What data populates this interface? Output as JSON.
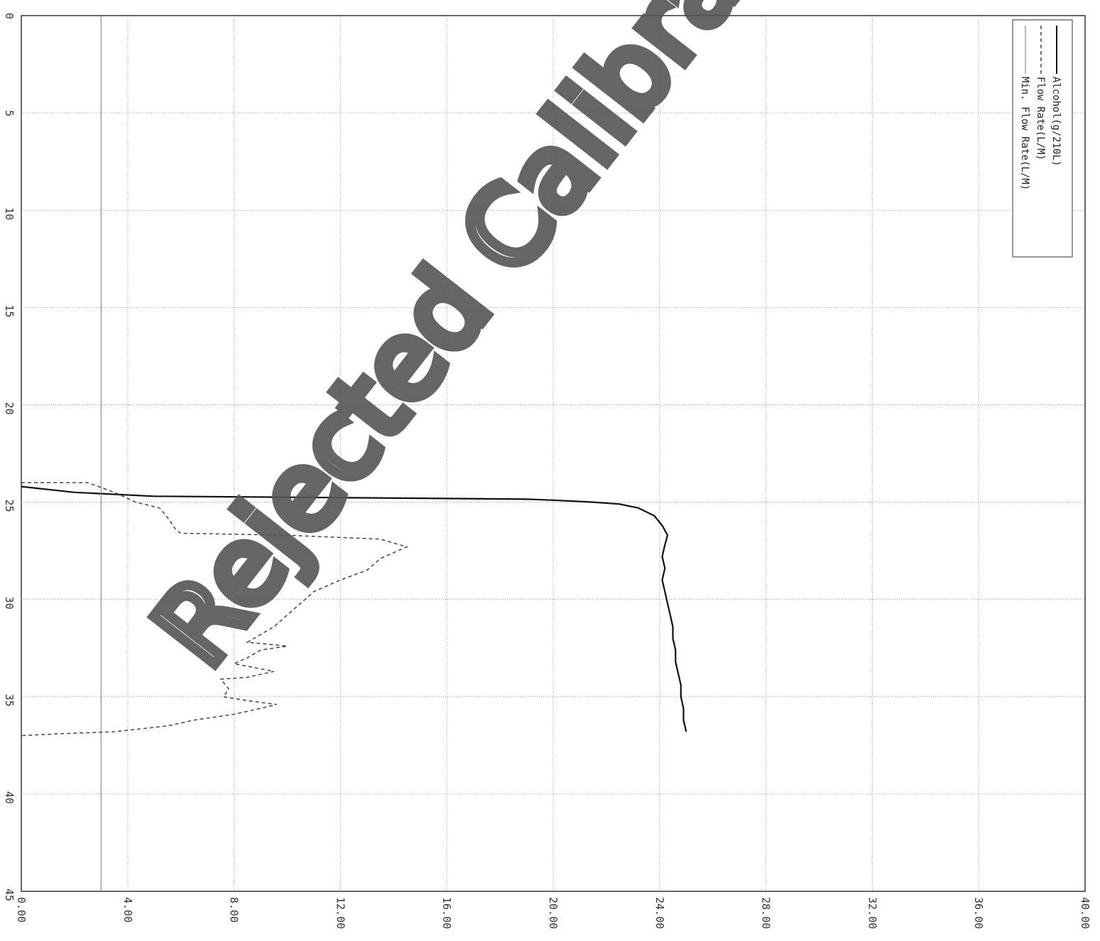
{
  "chart_data": {
    "type": "line",
    "title": "",
    "xlabel": "",
    "ylabel": "",
    "x_axis_position": "bottom",
    "y_axis_position": "left",
    "x_ticks": [
      "0.00",
      "4.00",
      "8.00",
      "12.00",
      "16.00",
      "20.00",
      "24.00",
      "28.00",
      "32.00",
      "36.00",
      "40.00"
    ],
    "y_ticks": [
      "0",
      "5",
      "10",
      "15",
      "20",
      "25",
      "30",
      "35",
      "40",
      "45"
    ],
    "xlim": [
      0,
      40
    ],
    "ylim": [
      0,
      45
    ],
    "y_inverted": true,
    "grid": true,
    "legend_position": "top-right",
    "series": [
      {
        "name": "Alcohol(g/210L)",
        "style": "solid",
        "color": "#111111",
        "points": [
          [
            0,
            24.2
          ],
          [
            2,
            24.5
          ],
          [
            5,
            24.7
          ],
          [
            10,
            24.75
          ],
          [
            15,
            24.8
          ],
          [
            19,
            24.85
          ],
          [
            20,
            24.9
          ],
          [
            21.5,
            25.0
          ],
          [
            22.5,
            25.1
          ],
          [
            23.2,
            25.3
          ],
          [
            23.8,
            25.7
          ],
          [
            24.1,
            26.2
          ],
          [
            24.3,
            26.7
          ],
          [
            24.2,
            27.2
          ],
          [
            24.1,
            27.8
          ],
          [
            24.2,
            28.4
          ],
          [
            24.1,
            29.0
          ],
          [
            24.2,
            29.6
          ],
          [
            24.3,
            30.2
          ],
          [
            24.4,
            30.8
          ],
          [
            24.5,
            31.4
          ],
          [
            24.5,
            32.0
          ],
          [
            24.6,
            32.6
          ],
          [
            24.6,
            33.2
          ],
          [
            24.7,
            33.8
          ],
          [
            24.8,
            34.4
          ],
          [
            24.8,
            35.0
          ],
          [
            24.9,
            35.6
          ],
          [
            24.9,
            36.2
          ],
          [
            25.0,
            36.8
          ]
        ]
      },
      {
        "name": "Flow Rate(L/M)",
        "style": "dashed",
        "color": "#444444",
        "points": [
          [
            0,
            24.0
          ],
          [
            2.5,
            24.0
          ],
          [
            3.5,
            24.5
          ],
          [
            4.3,
            25.0
          ],
          [
            5.2,
            25.3
          ],
          [
            5.5,
            25.8
          ],
          [
            5.8,
            26.4
          ],
          [
            6.0,
            26.6
          ],
          [
            10,
            26.7
          ],
          [
            13.5,
            26.9
          ],
          [
            14.5,
            27.3
          ],
          [
            13.5,
            27.9
          ],
          [
            13.0,
            28.5
          ],
          [
            12.0,
            29.0
          ],
          [
            11.0,
            29.6
          ],
          [
            10.5,
            30.2
          ],
          [
            10.0,
            30.8
          ],
          [
            9.5,
            31.4
          ],
          [
            9.0,
            31.8
          ],
          [
            8.5,
            32.2
          ],
          [
            10.0,
            32.4
          ],
          [
            9.0,
            32.6
          ],
          [
            8.5,
            33.0
          ],
          [
            8.0,
            33.3
          ],
          [
            9.5,
            33.7
          ],
          [
            8.5,
            34.0
          ],
          [
            7.5,
            34.1
          ],
          [
            7.8,
            34.6
          ],
          [
            7.6,
            35.0
          ],
          [
            8.5,
            35.2
          ],
          [
            9.6,
            35.4
          ],
          [
            9.0,
            35.6
          ],
          [
            8.0,
            35.9
          ],
          [
            6.5,
            36.2
          ],
          [
            5.5,
            36.5
          ],
          [
            3.5,
            36.8
          ],
          [
            1.5,
            36.9
          ],
          [
            0,
            37.0
          ]
        ]
      },
      {
        "name": "Min. Flow Rate(L/M)",
        "style": "solid-thin",
        "color": "#777777",
        "points": [
          [
            3,
            0
          ],
          [
            3,
            45
          ]
        ]
      }
    ]
  },
  "watermark": {
    "text": "Rejected Calibration"
  }
}
